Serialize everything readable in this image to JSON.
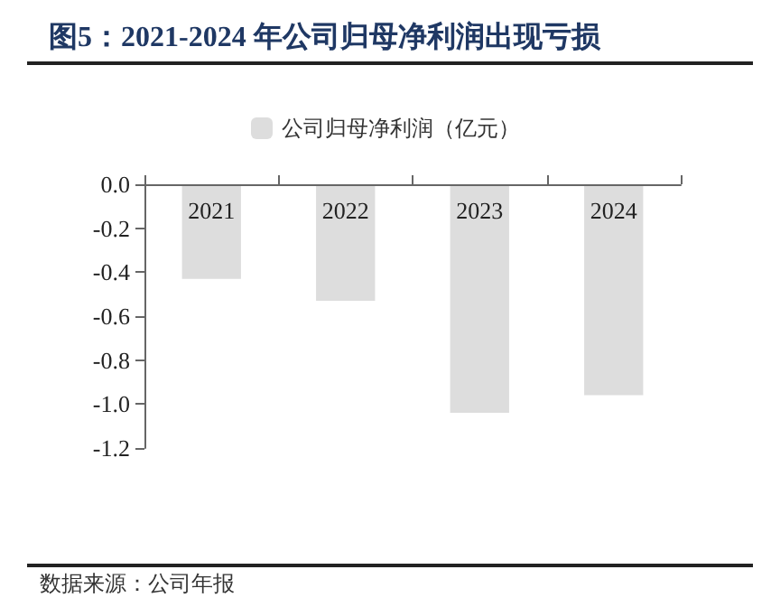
{
  "chart_data": {
    "type": "bar",
    "title": "图5：2021-2024 年公司归母净利润出现亏损",
    "categories": [
      "2021",
      "2022",
      "2023",
      "2024"
    ],
    "series": [
      {
        "name": "公司归母净利润（亿元）",
        "color": "#dddddd",
        "values": [
          -0.43,
          -0.53,
          -1.04,
          -0.96
        ]
      }
    ],
    "ylim": [
      -1.2,
      0
    ],
    "yticks": [
      {
        "value": 0,
        "label": "0.0"
      },
      {
        "value": -0.2,
        "label": "-0.2"
      },
      {
        "value": -0.4,
        "label": "-0.4"
      },
      {
        "value": -0.6,
        "label": "-0.6"
      },
      {
        "value": -0.8,
        "label": "-0.8"
      },
      {
        "value": -1.0,
        "label": "-1.0"
      },
      {
        "value": -1.2,
        "label": "-1.2"
      }
    ],
    "legend": "top",
    "annotations": [
      "数据来源：公司年报"
    ]
  }
}
